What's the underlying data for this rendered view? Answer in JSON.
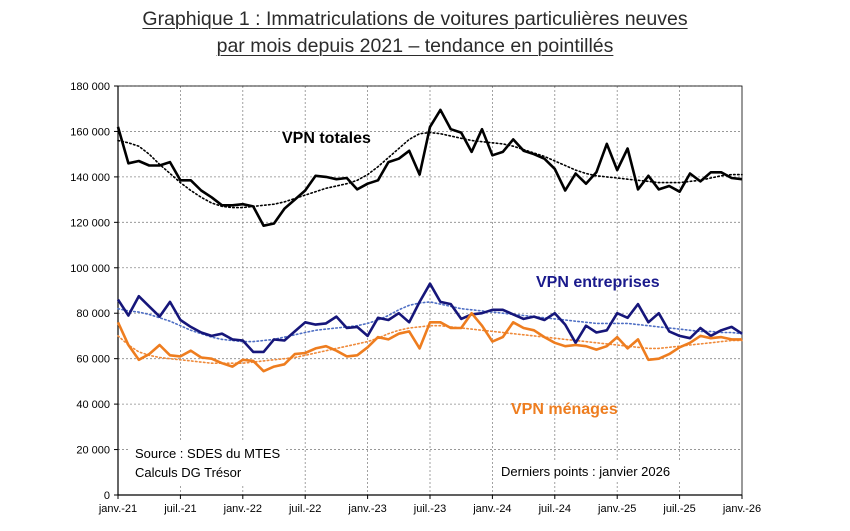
{
  "title": {
    "line1": "Graphique 1 : Immatriculations de voitures particulières neuves",
    "line2": "par mois depuis 2021 – tendance en pointillés"
  },
  "chart_data": {
    "type": "line",
    "title": "Graphique 1 : Immatriculations de voitures particulières neuves par mois depuis 2021 – tendance en pointillés",
    "xlabel": "",
    "ylabel": "",
    "ylim": [
      0,
      180000
    ],
    "yticks": [
      0,
      20000,
      40000,
      60000,
      80000,
      100000,
      120000,
      140000,
      160000,
      180000
    ],
    "ytick_labels": [
      "0",
      "20 000",
      "40 000",
      "60 000",
      "80 000",
      "100 000",
      "120 000",
      "140 000",
      "160 000",
      "180 000"
    ],
    "xtick_labels": [
      "janv.-21",
      "juil.-21",
      "janv.-22",
      "juil.-22",
      "janv.-23",
      "juil.-23",
      "janv.-24",
      "juil.-24",
      "janv.-25",
      "juil.-25",
      "janv.-26"
    ],
    "months_count": 61,
    "grid": true,
    "series": [
      {
        "name": "VPN totales",
        "color": "#000000",
        "label_color": "#000000",
        "values": [
          162000,
          146000,
          147000,
          145000,
          145000,
          146500,
          138500,
          138500,
          134000,
          131000,
          127500,
          127500,
          128000,
          127000,
          118500,
          119500,
          126000,
          130000,
          134000,
          140500,
          140000,
          139000,
          139500,
          134500,
          137000,
          138500,
          146500,
          148000,
          151500,
          141000,
          162000,
          169500,
          161000,
          159500,
          151000,
          161000,
          149500,
          151000,
          156500,
          151500,
          150000,
          148000,
          143500,
          134000,
          141500,
          137000,
          142000,
          154500,
          143000,
          152500,
          134500,
          140500,
          134500,
          136000,
          133500,
          141500,
          138000,
          142000,
          142000,
          139500,
          139000
        ],
        "trend": [
          156000,
          155000,
          153500,
          150000,
          145500,
          141500,
          137500,
          134000,
          131000,
          128500,
          127000,
          126500,
          126500,
          127000,
          127500,
          128000,
          129000,
          130500,
          132000,
          133500,
          135000,
          136000,
          137000,
          138500,
          141000,
          144500,
          148500,
          152500,
          156500,
          159000,
          159500,
          159000,
          158000,
          157000,
          156000,
          155500,
          155000,
          154500,
          153500,
          152000,
          150500,
          149000,
          147000,
          145000,
          143000,
          141500,
          140500,
          140000,
          139500,
          139000,
          138500,
          138000,
          137500,
          137500,
          137500,
          138000,
          138500,
          139500,
          140500,
          141000,
          141000
        ]
      },
      {
        "name": "VPN entreprises",
        "color": "#16167a",
        "trend_color": "#4f6fc4",
        "label_color": "#1a1a8c",
        "values": [
          86000,
          79000,
          87500,
          83000,
          78500,
          85000,
          77000,
          74000,
          71500,
          70000,
          71000,
          68500,
          68000,
          63000,
          63000,
          68500,
          68000,
          72000,
          76000,
          75000,
          75500,
          78500,
          73500,
          74000,
          70000,
          78000,
          77000,
          80000,
          76000,
          85000,
          93000,
          85000,
          84000,
          77500,
          79500,
          80000,
          81500,
          81500,
          79500,
          77500,
          78500,
          77000,
          80000,
          75000,
          67000,
          74500,
          71500,
          72500,
          80000,
          78000,
          84000,
          76000,
          80000,
          72000,
          70000,
          69000,
          73500,
          70000,
          72500,
          74000,
          71000
        ],
        "trend": [
          82000,
          81000,
          80500,
          79500,
          78000,
          76500,
          74500,
          72500,
          71000,
          69500,
          68500,
          68000,
          67500,
          67500,
          68000,
          68500,
          69500,
          70500,
          71500,
          72500,
          73000,
          73500,
          74000,
          74500,
          75500,
          77000,
          79000,
          81500,
          83500,
          84500,
          85000,
          84000,
          83000,
          82000,
          81500,
          81000,
          80500,
          80000,
          79500,
          79000,
          78500,
          78000,
          77500,
          77000,
          76500,
          76000,
          75500,
          75500,
          75500,
          75500,
          75000,
          74500,
          74000,
          73500,
          73000,
          72500,
          72000,
          72000,
          71500,
          71500,
          71000
        ]
      },
      {
        "name": "VPN ménages",
        "color": "#ee7d1f",
        "trend_color": "#ef8a3a",
        "label_color": "#ee7d1f",
        "values": [
          76000,
          66000,
          59500,
          62000,
          66000,
          61500,
          61000,
          63500,
          60500,
          60000,
          58000,
          56500,
          59500,
          59000,
          54500,
          56500,
          57500,
          62000,
          62500,
          64500,
          65500,
          63500,
          61000,
          61500,
          65000,
          69500,
          68500,
          71000,
          72000,
          64500,
          76000,
          76000,
          73500,
          73500,
          80000,
          74500,
          67500,
          69500,
          76000,
          73500,
          72500,
          69500,
          67000,
          65500,
          66000,
          65500,
          64000,
          65500,
          69500,
          64500,
          68500,
          59500,
          60000,
          62000,
          65000,
          67000,
          70000,
          69000,
          69500,
          68500,
          68500
        ],
        "trend": [
          70000,
          66000,
          63000,
          61500,
          60500,
          60000,
          59500,
          59000,
          58500,
          58000,
          58000,
          58000,
          58000,
          58500,
          59000,
          59500,
          60000,
          60500,
          61500,
          62500,
          63500,
          64500,
          65500,
          66500,
          67500,
          69000,
          71000,
          72500,
          73500,
          74000,
          74500,
          74500,
          74000,
          73500,
          73000,
          72500,
          72000,
          71500,
          71000,
          70500,
          70000,
          69500,
          69000,
          68500,
          68000,
          67500,
          67000,
          66500,
          66000,
          65500,
          65000,
          64500,
          64500,
          65000,
          65500,
          66000,
          66500,
          67000,
          67500,
          68000,
          68000
        ]
      }
    ],
    "annotations": [
      "Source : SDES du MTES",
      "Calculs DG Trésor",
      "Derniers points : janvier 2026"
    ]
  },
  "notes": {
    "source": "Source : SDES du MTES",
    "calc": "Calculs DG Trésor",
    "last_points": "Derniers points : janvier 2026"
  }
}
